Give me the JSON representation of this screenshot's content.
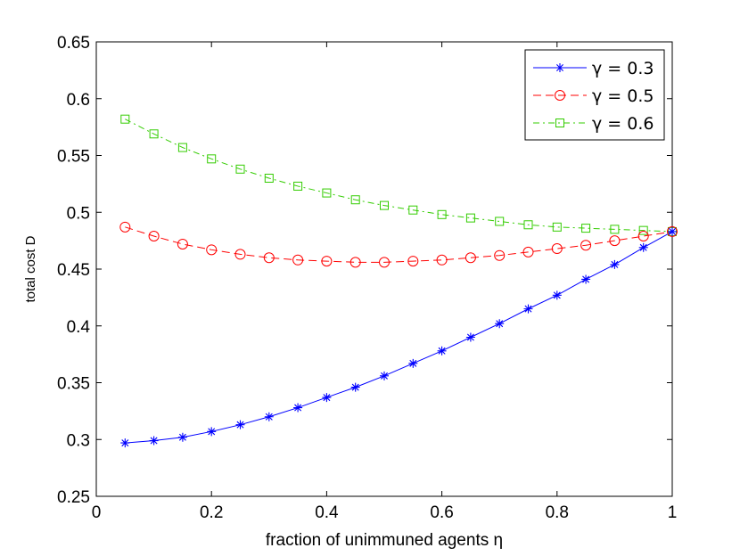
{
  "chart_data": {
    "type": "line",
    "title": "",
    "xlabel": "fraction of unimmuned agents η",
    "ylabel": "total cost D",
    "xlim": [
      0,
      1
    ],
    "ylim": [
      0.25,
      0.65
    ],
    "xticks": [
      "0",
      "0.2",
      "0.4",
      "0.6",
      "0.8",
      "1"
    ],
    "yticks": [
      "0.25",
      "0.3",
      "0.35",
      "0.4",
      "0.45",
      "0.5",
      "0.55",
      "0.6",
      "0.65"
    ],
    "grid": false,
    "legend_position": "top-right",
    "x": [
      0.05,
      0.1,
      0.15,
      0.2,
      0.25,
      0.3,
      0.35,
      0.4,
      0.45,
      0.5,
      0.55,
      0.6,
      0.65,
      0.7,
      0.75,
      0.8,
      0.85,
      0.9,
      0.95,
      1.0
    ],
    "series": [
      {
        "name": "γ = 0.3",
        "color": "#0000ff",
        "marker": "asterisk",
        "line_style": "solid",
        "values": [
          0.297,
          0.299,
          0.302,
          0.307,
          0.313,
          0.32,
          0.328,
          0.337,
          0.346,
          0.356,
          0.367,
          0.378,
          0.39,
          0.402,
          0.415,
          0.427,
          0.441,
          0.454,
          0.469,
          0.483
        ]
      },
      {
        "name": "γ = 0.5",
        "color": "#ff0000",
        "marker": "circle",
        "line_style": "dashed",
        "values": [
          0.487,
          0.479,
          0.472,
          0.467,
          0.463,
          0.46,
          0.458,
          0.457,
          0.456,
          0.456,
          0.457,
          0.458,
          0.46,
          0.462,
          0.465,
          0.468,
          0.471,
          0.475,
          0.479,
          0.483
        ]
      },
      {
        "name": "γ = 0.6",
        "color": "#33cc00",
        "marker": "square",
        "line_style": "dashdot",
        "values": [
          0.582,
          0.569,
          0.557,
          0.547,
          0.538,
          0.53,
          0.523,
          0.517,
          0.511,
          0.506,
          0.502,
          0.498,
          0.495,
          0.492,
          0.489,
          0.487,
          0.486,
          0.485,
          0.484,
          0.483
        ]
      }
    ]
  }
}
